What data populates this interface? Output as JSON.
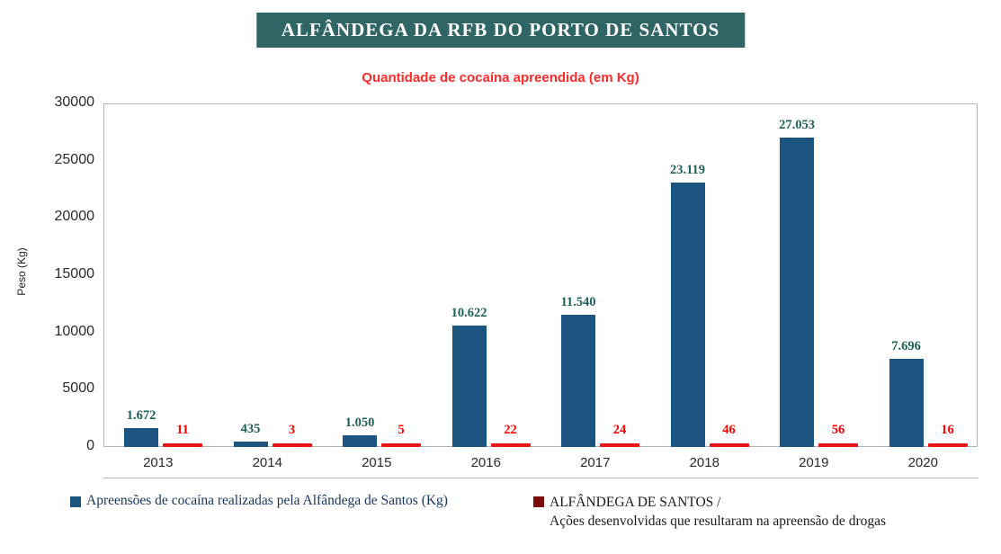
{
  "header": {
    "title": "ALFÂNDEGA DA RFB DO PORTO DE SANTOS"
  },
  "subtitle": "Quantidade de cocaína apreendida (em Kg)",
  "axis": {
    "ylabel": "Peso (Kg)"
  },
  "legend": {
    "series1_label": "Apreensões de cocaína realizadas pela Alfândega de Santos (Kg)",
    "series2_label_line1": "ALFÂNDEGA DE SANTOS /",
    "series2_label_line2": "Ações desenvolvidas que resultaram na apreensão de drogas"
  },
  "colors": {
    "title_background": "#2f6564",
    "title_text": "#ffffff",
    "subtitle_text": "#ff2a2a",
    "bar_blue": "#1b547f",
    "bar_red": "#e81313",
    "legend_red_swatch": "#7b0c0c",
    "blue_value_label": "#1e6158",
    "red_value_label": "#ff0000"
  },
  "chart_data": {
    "type": "bar",
    "title": "ALFÂNDEGA DA RFB DO PORTO DE SANTOS",
    "subtitle": "Quantidade de cocaína apreendida (em Kg)",
    "categories": [
      "2013",
      "2014",
      "2015",
      "2016",
      "2017",
      "2018",
      "2019",
      "2020"
    ],
    "series": [
      {
        "name": "Apreensões de cocaína realizadas pela Alfândega de Santos (Kg)",
        "color": "#1b547f",
        "label_color": "#1e6158",
        "values": [
          1672,
          435,
          1050,
          10622,
          11540,
          23119,
          27053,
          7696
        ],
        "labels": [
          "1.672",
          "435",
          "1.050",
          "10.622",
          "11.540",
          "23.119",
          "27.053",
          "7.696"
        ]
      },
      {
        "name": "ALFÂNDEGA DE SANTOS / Ações desenvolvidas que resultaram na apreensão de drogas",
        "color": "#e81313",
        "label_color": "#ff0000",
        "values": [
          11,
          3,
          5,
          22,
          24,
          46,
          56,
          16
        ],
        "labels": [
          "11",
          "3",
          "5",
          "22",
          "24",
          "46",
          "56",
          "16"
        ]
      }
    ],
    "xlabel": "",
    "ylabel": "Peso (Kg)",
    "ylim": [
      0,
      30000
    ],
    "yticks": [
      0,
      5000,
      10000,
      15000,
      20000,
      25000,
      30000
    ],
    "grid": false,
    "legend_position": "bottom"
  }
}
